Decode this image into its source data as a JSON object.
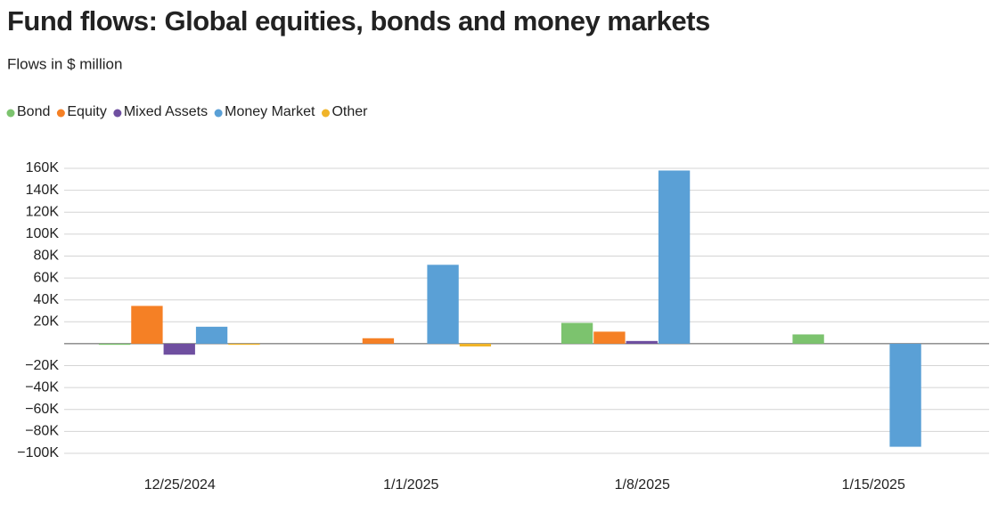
{
  "chart_data": {
    "type": "bar",
    "title": "Fund flows: Global equities, bonds and money markets",
    "subtitle": "Flows in $ million",
    "categories": [
      "12/25/2024",
      "1/1/2025",
      "1/8/2025",
      "1/15/2025"
    ],
    "series": [
      {
        "name": "Bond",
        "color": "#7cc36e",
        "values": [
          -1000,
          null,
          19000,
          8500
        ]
      },
      {
        "name": "Equity",
        "color": "#f58025",
        "values": [
          34500,
          5000,
          11000,
          null
        ]
      },
      {
        "name": "Mixed Assets",
        "color": "#6f4fa0",
        "values": [
          -10000,
          null,
          2500,
          null
        ]
      },
      {
        "name": "Money Market",
        "color": "#5aa0d6",
        "values": [
          15500,
          72000,
          158000,
          -94000
        ]
      },
      {
        "name": "Other",
        "color": "#f0b429",
        "values": [
          -1000,
          -2500,
          null,
          null
        ]
      }
    ],
    "ylim": [
      -100000,
      160000
    ],
    "yticks": [
      {
        "value": -100000,
        "label": "−100K"
      },
      {
        "value": -80000,
        "label": "−80K"
      },
      {
        "value": -60000,
        "label": "−60K"
      },
      {
        "value": -40000,
        "label": "−40K"
      },
      {
        "value": -20000,
        "label": "−20K"
      },
      {
        "value": 20000,
        "label": "20K"
      },
      {
        "value": 40000,
        "label": "40K"
      },
      {
        "value": 60000,
        "label": "60K"
      },
      {
        "value": 80000,
        "label": "80K"
      },
      {
        "value": 100000,
        "label": "100K"
      },
      {
        "value": 120000,
        "label": "120K"
      },
      {
        "value": 140000,
        "label": "140K"
      },
      {
        "value": 160000,
        "label": "160K"
      }
    ],
    "grid": true,
    "legend": "top-left"
  }
}
